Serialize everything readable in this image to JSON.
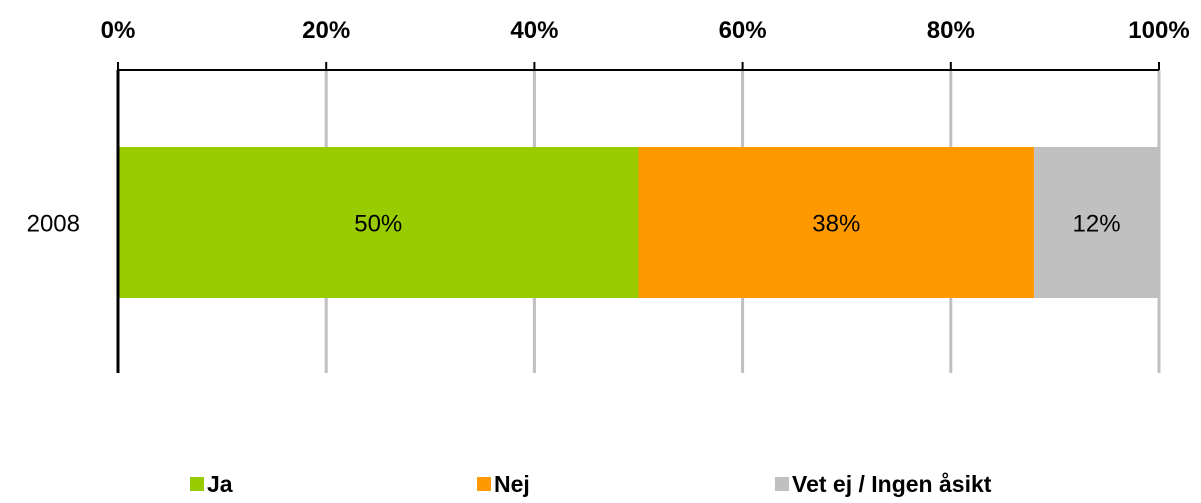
{
  "chart_data": {
    "type": "bar",
    "orientation": "horizontal",
    "stacked": true,
    "percent": true,
    "categories": [
      "2008"
    ],
    "series": [
      {
        "name": "Ja",
        "values": [
          50
        ],
        "color": "#99cc00"
      },
      {
        "name": "Nej",
        "values": [
          38
        ],
        "color": "#ff9900"
      },
      {
        "name": "Vet ej / Ingen åsikt",
        "values": [
          12
        ],
        "color": "#c0c0c0"
      }
    ],
    "data_labels": [
      [
        "50%"
      ],
      [
        "38%"
      ],
      [
        "12%"
      ]
    ],
    "xlim": [
      0,
      100
    ],
    "xticks": [
      0,
      20,
      40,
      60,
      80,
      100
    ],
    "xtick_labels": [
      "0%",
      "20%",
      "40%",
      "60%",
      "80%",
      "100%"
    ],
    "x_axis_position": "top",
    "grid": true,
    "legend_position": "bottom",
    "title": "",
    "xlabel": "",
    "ylabel": ""
  }
}
